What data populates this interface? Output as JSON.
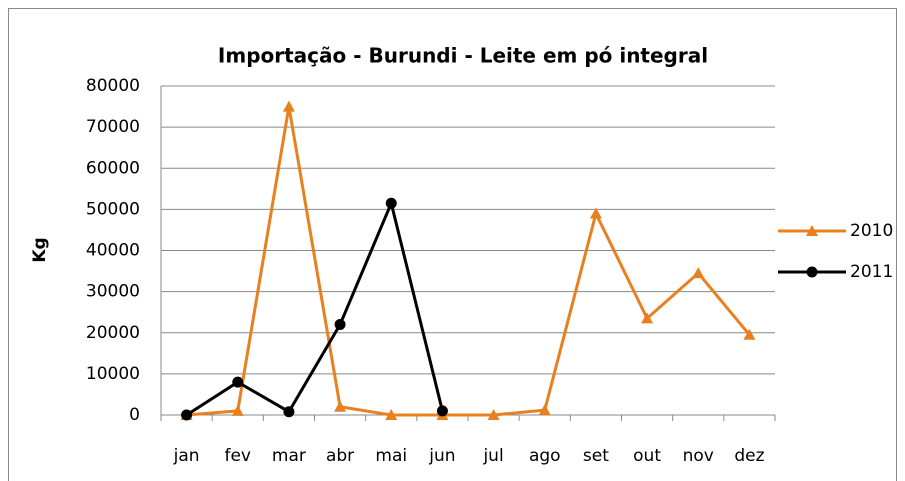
{
  "chart_data": {
    "type": "line",
    "title": "Importação - Burundi - Leite em pó integral",
    "ylabel": "Kg",
    "categories": [
      "jan",
      "fev",
      "mar",
      "abr",
      "mai",
      "jun",
      "jul",
      "ago",
      "set",
      "out",
      "nov",
      "dez"
    ],
    "series": [
      {
        "name": "2010",
        "color": "#e8801f",
        "marker": "triangle",
        "values": [
          0,
          1000,
          75000,
          2000,
          0,
          0,
          0,
          1200,
          49000,
          23500,
          34500,
          19500
        ]
      },
      {
        "name": "2011",
        "color": "#000000",
        "marker": "circle",
        "values": [
          0,
          8000,
          800,
          22000,
          51500,
          1000,
          null,
          null,
          null,
          null,
          null,
          null
        ]
      }
    ],
    "ylim": [
      0,
      80000
    ],
    "yticks": [
      0,
      10000,
      20000,
      30000,
      40000,
      50000,
      60000,
      70000,
      80000
    ],
    "grid": true,
    "legend": "right"
  }
}
